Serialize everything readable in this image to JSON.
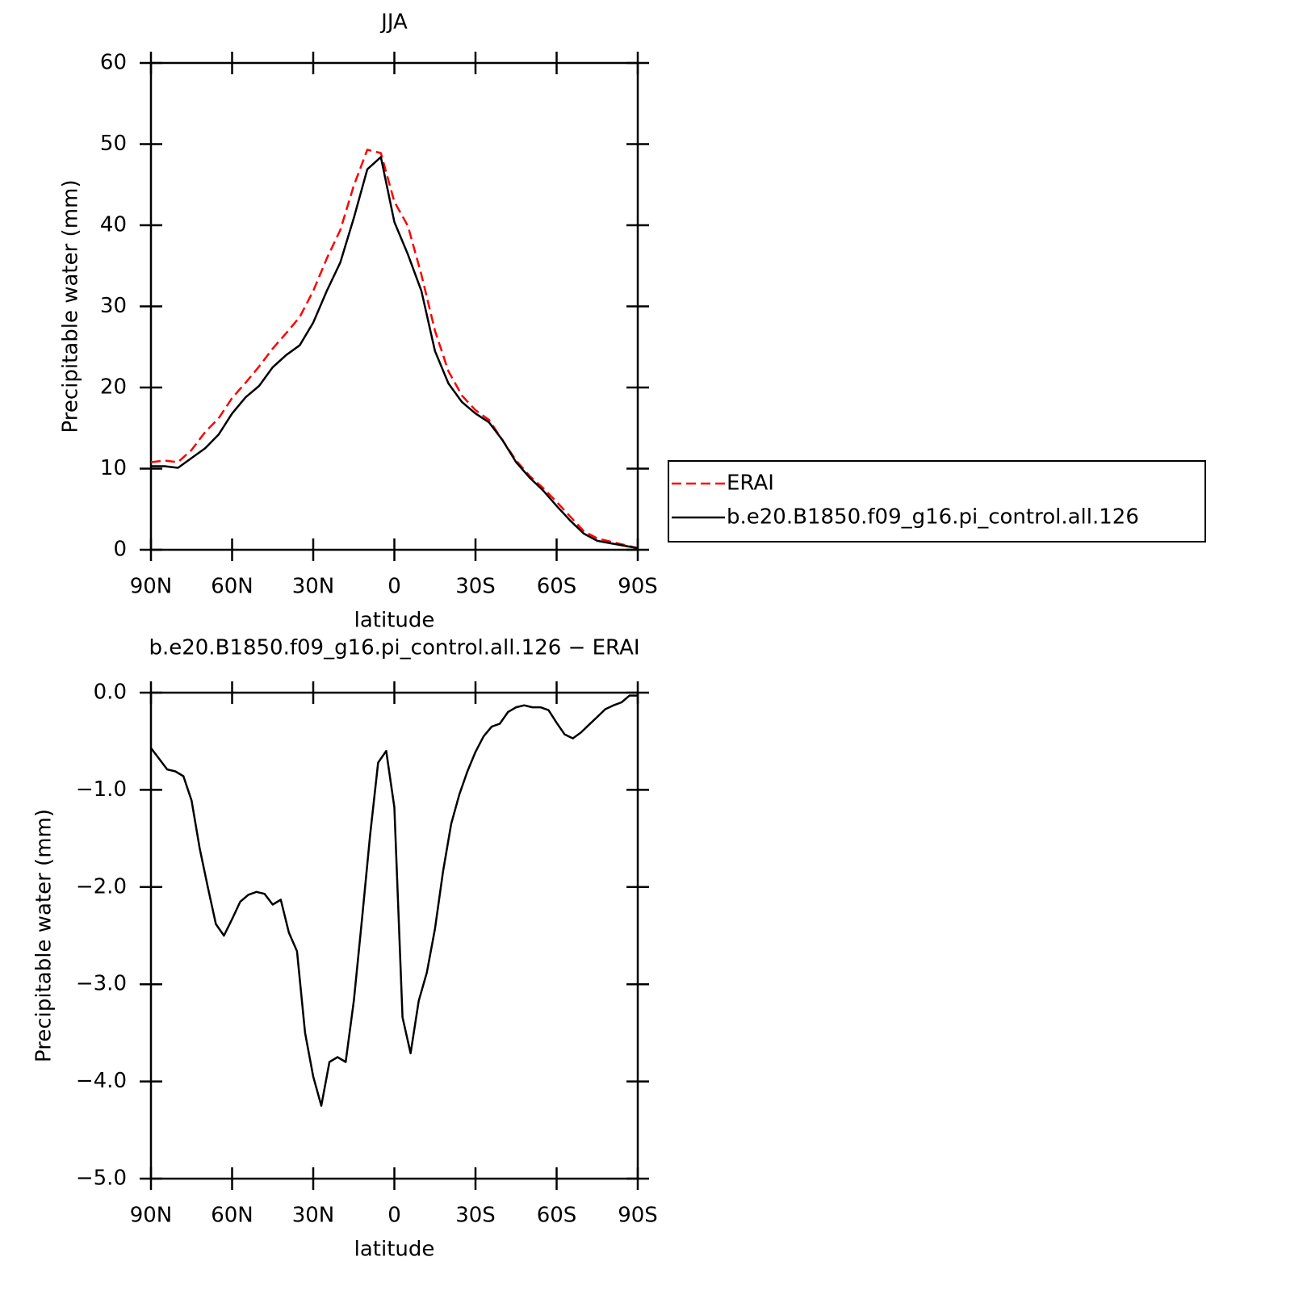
{
  "chart_data": [
    {
      "type": "line",
      "title": "JJA",
      "ylabel": "Precipitable water (mm)",
      "xlabel": "latitude",
      "x": [
        90,
        85,
        80,
        75,
        70,
        65,
        60,
        55,
        50,
        45,
        40,
        35,
        30,
        25,
        20,
        15,
        10,
        5,
        0,
        -5,
        -10,
        -15,
        -20,
        -25,
        -30,
        -35,
        -40,
        -45,
        -50,
        -55,
        -60,
        -65,
        -70,
        -75,
        -80,
        -85,
        -90
      ],
      "xlim": [
        90,
        -90
      ],
      "xticks": [
        {
          "value": 90,
          "label": "90N"
        },
        {
          "value": 60,
          "label": "60N"
        },
        {
          "value": 30,
          "label": "30N"
        },
        0,
        {
          "value": -30,
          "label": "30S"
        },
        {
          "value": -60,
          "label": "60S"
        },
        {
          "value": -90,
          "label": "90S"
        }
      ],
      "ylim": [
        0,
        60
      ],
      "yticks": [
        0,
        10,
        20,
        30,
        40,
        50,
        60
      ],
      "legend": "right",
      "series": [
        {
          "name": "ERAI",
          "color": "#ff0000",
          "linestyle": "dashed",
          "values": [
            10.8,
            11.0,
            10.8,
            12.3,
            14.5,
            16.2,
            18.7,
            20.6,
            22.6,
            24.8,
            26.7,
            28.7,
            31.9,
            35.9,
            39.4,
            44.9,
            49.3,
            48.9,
            42.9,
            39.9,
            33.9,
            27.0,
            22.0,
            19.0,
            17.2,
            16.0,
            13.5,
            11.0,
            9.1,
            7.6,
            5.9,
            4.1,
            2.3,
            1.4,
            1.0,
            0.6,
            0.2
          ]
        },
        {
          "name": "b.e20.B1850.f09_g16.pi_control.all.126",
          "color": "#000000",
          "linestyle": "solid",
          "values": [
            10.3,
            10.3,
            10.1,
            11.3,
            12.5,
            14.2,
            16.8,
            18.8,
            20.2,
            22.5,
            24.0,
            25.2,
            28.0,
            31.9,
            35.4,
            40.9,
            46.9,
            48.4,
            40.4,
            36.4,
            31.9,
            24.5,
            20.5,
            18.2,
            16.8,
            15.7,
            13.5,
            10.8,
            8.9,
            7.3,
            5.4,
            3.6,
            2.0,
            1.1,
            0.8,
            0.5,
            0.2
          ]
        }
      ]
    },
    {
      "type": "line",
      "title": "b.e20.B1850.f09_g16.pi_control.all.126 − ERAI",
      "ylabel": "Precipitable water (mm)",
      "xlabel": "latitude",
      "x": [
        90,
        87,
        84,
        81,
        78,
        75,
        72,
        69,
        66,
        63,
        60,
        57,
        54,
        51,
        48,
        45,
        42,
        39,
        36,
        33,
        30,
        27,
        24,
        21,
        18,
        15,
        12,
        9,
        6,
        3,
        0,
        -3,
        -6,
        -9,
        -12,
        -15,
        -18,
        -21,
        -24,
        -27,
        -30,
        -33,
        -36,
        -39,
        -42,
        -45,
        -48,
        -51,
        -54,
        -57,
        -60,
        -63,
        -66,
        -69,
        -72,
        -75,
        -78,
        -81,
        -84,
        -87,
        -90
      ],
      "xlim": [
        90,
        -90
      ],
      "xticks": [
        {
          "value": 90,
          "label": "90N"
        },
        {
          "value": 60,
          "label": "60N"
        },
        {
          "value": 30,
          "label": "30N"
        },
        0,
        {
          "value": -30,
          "label": "30S"
        },
        {
          "value": -60,
          "label": "60S"
        },
        {
          "value": -90,
          "label": "90S"
        }
      ],
      "ylim": [
        -5,
        0
      ],
      "yticks": [
        {
          "value": -5,
          "label": "−5.0"
        },
        {
          "value": -4,
          "label": "−4.0"
        },
        {
          "value": -3,
          "label": "−3.0"
        },
        {
          "value": -2,
          "label": "−2.0"
        },
        {
          "value": -1,
          "label": "−1.0"
        },
        {
          "value": 0,
          "label": "0.0"
        }
      ],
      "series": [
        {
          "color": "#000000",
          "linestyle": "solid",
          "values": [
            -0.57,
            -0.68,
            -0.79,
            -0.81,
            -0.86,
            -1.11,
            -1.6,
            -2.0,
            -2.38,
            -2.5,
            -2.33,
            -2.15,
            -2.08,
            -2.05,
            -2.07,
            -2.18,
            -2.13,
            -2.47,
            -2.66,
            -3.5,
            -3.95,
            -4.25,
            -3.8,
            -3.75,
            -3.8,
            -3.17,
            -2.34,
            -1.47,
            -0.72,
            -0.6,
            -1.18,
            -3.34,
            -3.71,
            -3.17,
            -2.88,
            -2.43,
            -1.84,
            -1.35,
            -1.05,
            -0.81,
            -0.61,
            -0.45,
            -0.35,
            -0.32,
            -0.2,
            -0.15,
            -0.13,
            -0.15,
            -0.15,
            -0.18,
            -0.31,
            -0.43,
            -0.47,
            -0.41,
            -0.33,
            -0.25,
            -0.17,
            -0.13,
            -0.1,
            -0.03,
            -0.03
          ]
        }
      ]
    }
  ]
}
